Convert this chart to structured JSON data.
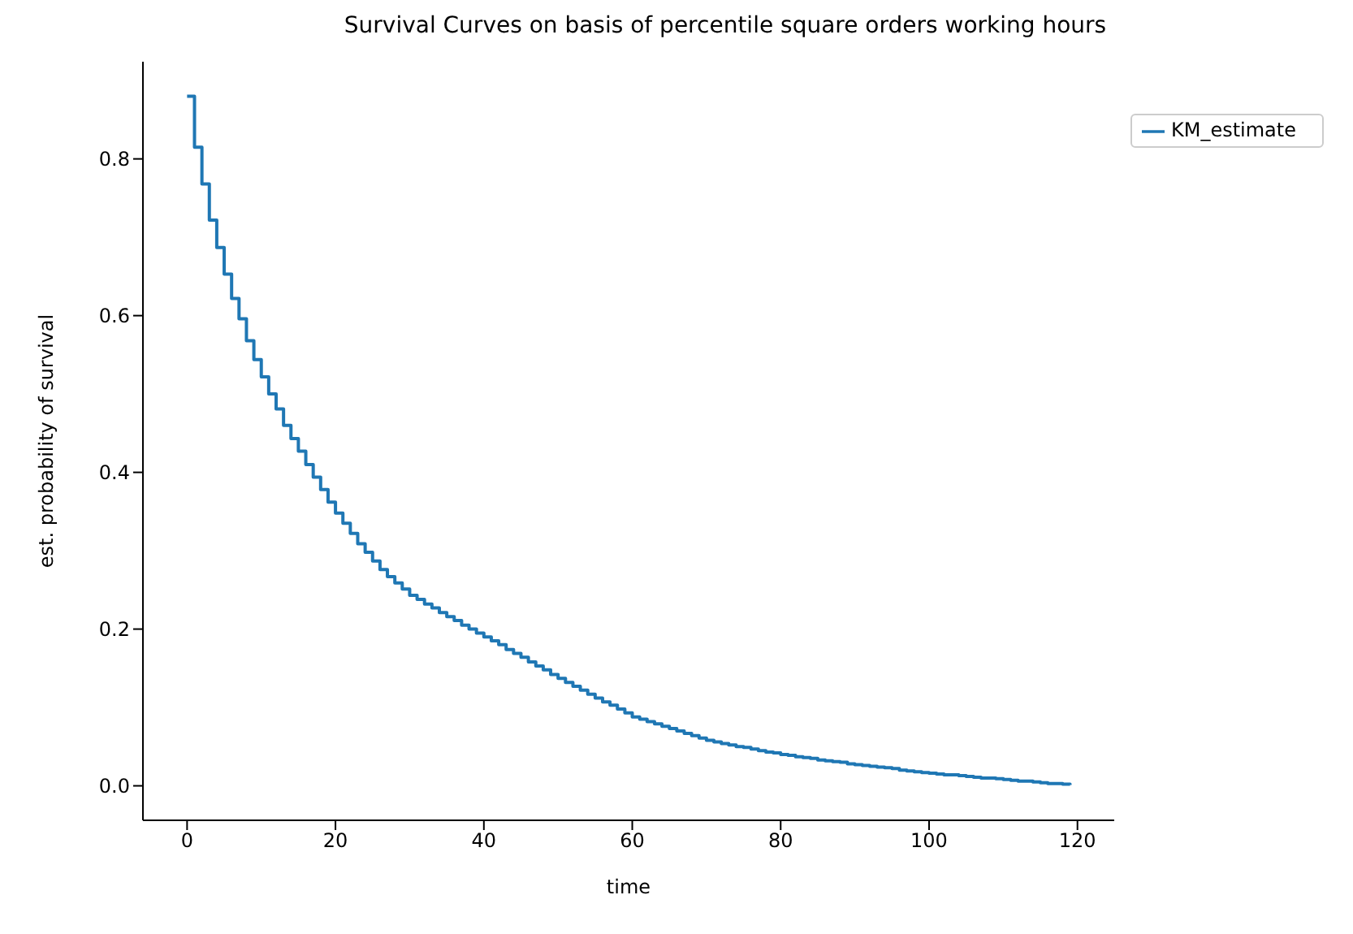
{
  "chart_data": {
    "type": "step",
    "title": "Survival Curves on basis of percentile square orders working hours",
    "xlabel": "time",
    "ylabel": "est. probability of survival",
    "x": [
      0,
      1,
      2,
      3,
      4,
      5,
      6,
      7,
      8,
      9,
      10,
      11,
      12,
      13,
      14,
      15,
      16,
      17,
      18,
      19,
      20,
      21,
      22,
      23,
      24,
      25,
      26,
      27,
      28,
      29,
      30,
      31,
      32,
      33,
      34,
      35,
      36,
      37,
      38,
      39,
      40,
      41,
      42,
      43,
      44,
      45,
      46,
      47,
      48,
      49,
      50,
      51,
      52,
      53,
      54,
      55,
      56,
      57,
      58,
      59,
      60,
      61,
      62,
      63,
      64,
      65,
      66,
      67,
      68,
      69,
      70,
      71,
      72,
      73,
      74,
      75,
      76,
      77,
      78,
      79,
      80,
      81,
      82,
      83,
      84,
      85,
      86,
      87,
      88,
      89,
      90,
      91,
      92,
      93,
      94,
      95,
      96,
      97,
      98,
      99,
      100,
      101,
      102,
      103,
      104,
      105,
      106,
      107,
      108,
      109,
      110,
      111,
      112,
      113,
      114,
      115,
      116,
      117,
      118,
      119
    ],
    "series": [
      {
        "name": "KM_estimate",
        "color": "#1f77b4",
        "values": [
          0.88,
          0.815,
          0.768,
          0.722,
          0.687,
          0.653,
          0.622,
          0.596,
          0.568,
          0.544,
          0.522,
          0.5,
          0.481,
          0.46,
          0.443,
          0.427,
          0.41,
          0.394,
          0.378,
          0.362,
          0.348,
          0.335,
          0.322,
          0.309,
          0.298,
          0.287,
          0.276,
          0.267,
          0.259,
          0.251,
          0.243,
          0.238,
          0.232,
          0.227,
          0.221,
          0.216,
          0.211,
          0.205,
          0.2,
          0.195,
          0.19,
          0.185,
          0.18,
          0.174,
          0.169,
          0.164,
          0.158,
          0.153,
          0.148,
          0.142,
          0.137,
          0.132,
          0.127,
          0.122,
          0.117,
          0.112,
          0.107,
          0.103,
          0.098,
          0.093,
          0.088,
          0.085,
          0.082,
          0.079,
          0.076,
          0.073,
          0.07,
          0.067,
          0.064,
          0.061,
          0.058,
          0.056,
          0.054,
          0.052,
          0.05,
          0.049,
          0.047,
          0.045,
          0.043,
          0.042,
          0.04,
          0.039,
          0.037,
          0.036,
          0.035,
          0.033,
          0.032,
          0.031,
          0.03,
          0.028,
          0.027,
          0.026,
          0.025,
          0.024,
          0.023,
          0.022,
          0.02,
          0.019,
          0.018,
          0.017,
          0.016,
          0.015,
          0.014,
          0.014,
          0.013,
          0.012,
          0.011,
          0.01,
          0.01,
          0.009,
          0.008,
          0.007,
          0.006,
          0.006,
          0.005,
          0.004,
          0.003,
          0.003,
          0.002,
          0.001
        ]
      }
    ],
    "xlim": [
      -5.95,
      124.95
    ],
    "xticks": [
      0,
      20,
      40,
      60,
      80,
      100,
      120
    ],
    "ylim": [
      -0.044,
      0.924
    ],
    "yticks": [
      {
        "value": 0,
        "label": "0.0"
      },
      0.2,
      0.4,
      0.6,
      0.8
    ],
    "legend": "top right"
  }
}
